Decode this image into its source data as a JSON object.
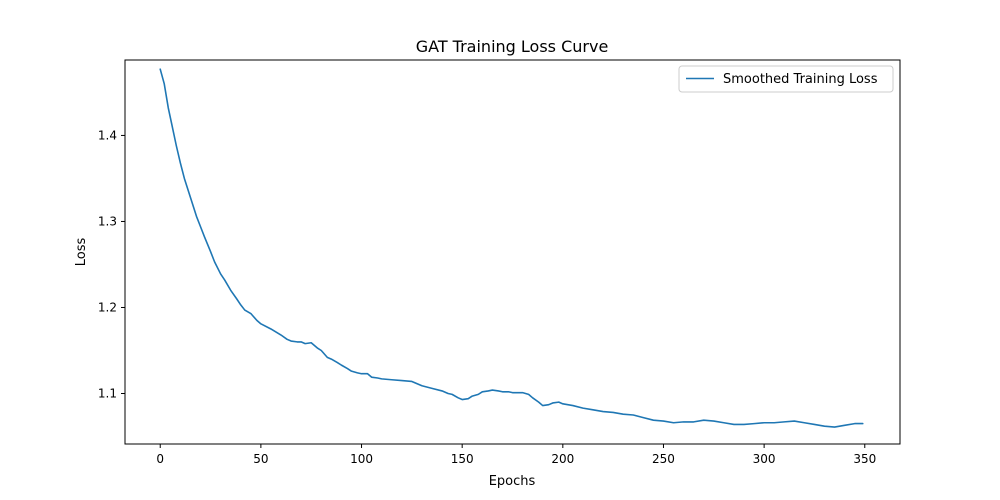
{
  "chart_data": {
    "type": "line",
    "title": "GAT Training Loss Curve",
    "xlabel": "Epochs",
    "ylabel": "Loss",
    "xlim": [
      -17.5,
      367.5
    ],
    "ylim": [
      1.0413,
      1.4877
    ],
    "xticks": [
      0,
      50,
      100,
      150,
      200,
      250,
      300,
      350
    ],
    "yticks": [
      1.1,
      1.2,
      1.3,
      1.4
    ],
    "xtick_labels": [
      "0",
      "50",
      "100",
      "150",
      "200",
      "250",
      "300",
      "350"
    ],
    "ytick_labels": [
      "1.1",
      "1.2",
      "1.3",
      "1.4"
    ],
    "grid": false,
    "legend": "top-right",
    "line_color": "#1f77b4",
    "series": [
      {
        "name": "Smoothed Training Loss",
        "x": [
          0,
          2,
          4,
          6,
          8,
          10,
          12,
          15,
          18,
          20,
          22,
          25,
          27,
          30,
          32,
          35,
          38,
          40,
          42,
          45,
          48,
          50,
          55,
          60,
          63,
          65,
          68,
          70,
          72,
          75,
          78,
          80,
          83,
          85,
          88,
          90,
          93,
          95,
          98,
          100,
          103,
          105,
          108,
          110,
          115,
          120,
          125,
          130,
          135,
          140,
          143,
          145,
          148,
          150,
          153,
          155,
          158,
          160,
          163,
          165,
          168,
          170,
          173,
          175,
          178,
          180,
          183,
          185,
          188,
          190,
          193,
          195,
          198,
          200,
          205,
          210,
          215,
          220,
          225,
          230,
          235,
          240,
          245,
          250,
          255,
          260,
          265,
          270,
          275,
          280,
          285,
          290,
          295,
          300,
          305,
          310,
          315,
          320,
          325,
          330,
          335,
          340,
          345,
          349
        ],
        "y": [
          1.477,
          1.46,
          1.432,
          1.41,
          1.388,
          1.368,
          1.35,
          1.328,
          1.306,
          1.294,
          1.282,
          1.265,
          1.253,
          1.239,
          1.232,
          1.22,
          1.21,
          1.203,
          1.197,
          1.193,
          1.185,
          1.181,
          1.175,
          1.168,
          1.163,
          1.161,
          1.16,
          1.16,
          1.158,
          1.159,
          1.153,
          1.15,
          1.142,
          1.14,
          1.136,
          1.133,
          1.129,
          1.126,
          1.124,
          1.123,
          1.123,
          1.119,
          1.118,
          1.117,
          1.116,
          1.115,
          1.114,
          1.109,
          1.106,
          1.103,
          1.1,
          1.099,
          1.095,
          1.093,
          1.094,
          1.097,
          1.099,
          1.102,
          1.103,
          1.104,
          1.103,
          1.102,
          1.102,
          1.101,
          1.101,
          1.101,
          1.099,
          1.095,
          1.09,
          1.086,
          1.087,
          1.089,
          1.09,
          1.088,
          1.086,
          1.083,
          1.081,
          1.079,
          1.078,
          1.076,
          1.075,
          1.072,
          1.069,
          1.068,
          1.066,
          1.067,
          1.067,
          1.069,
          1.068,
          1.066,
          1.064,
          1.064,
          1.065,
          1.066,
          1.066,
          1.067,
          1.068,
          1.066,
          1.064,
          1.062,
          1.061,
          1.063,
          1.065,
          1.065
        ]
      }
    ]
  }
}
